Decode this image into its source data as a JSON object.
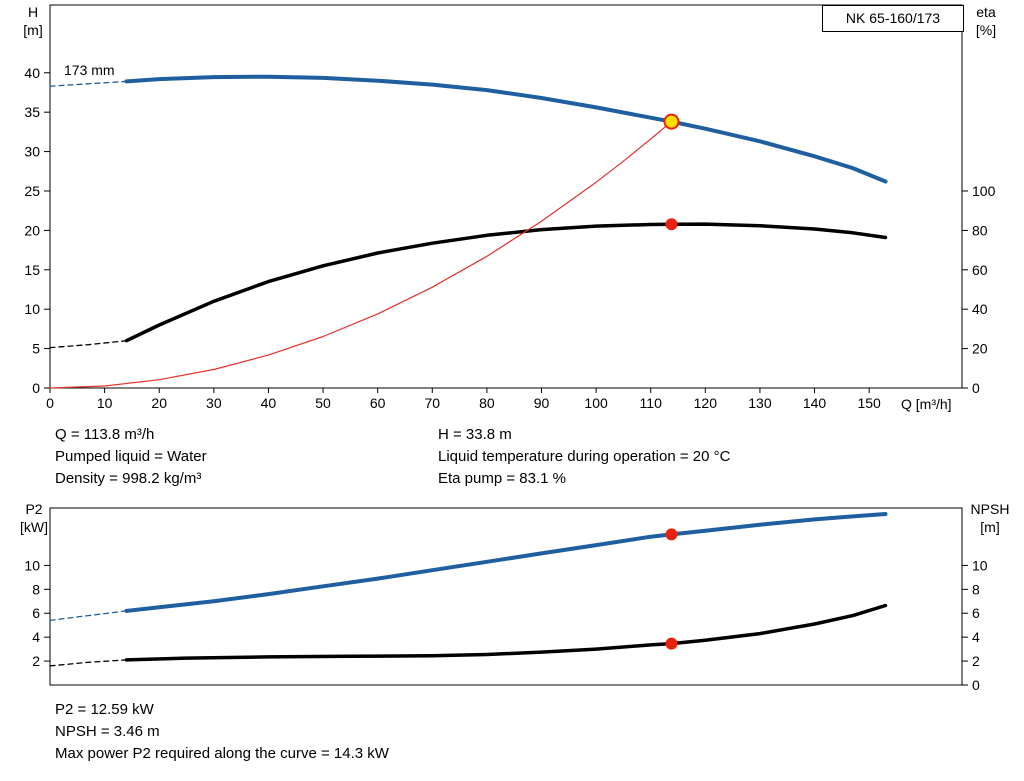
{
  "model": "NK 65-160/173",
  "impeller_label": "173 mm",
  "info_top": {
    "left": [
      "Q = 113.8 m³/h",
      "Pumped liquid = Water",
      "Density = 998.2 kg/m³"
    ],
    "right": [
      "H = 33.8 m",
      "Liquid temperature during operation = 20 °C",
      "Eta pump = 83.1 %"
    ]
  },
  "info_bottom": [
    "P2 = 12.59 kW",
    "NPSH = 3.46 m",
    "Max power P2 required along the curve = 14.3 kW"
  ],
  "colors": {
    "curve_blue": "#1f5fa0",
    "curve_black": "#000000",
    "system_red": "#e23329",
    "marker_red": "#e8210f",
    "marker_yellow": "#ffdf00"
  },
  "chart_data": [
    {
      "name": "qh-eta-chart",
      "type": "line",
      "title": "NK 65-160/173",
      "xlabel": "Q [m³/h]",
      "ylabel_left": [
        "H",
        "[m]"
      ],
      "ylabel_right": [
        "eta",
        "[%]"
      ],
      "xlim": [
        0,
        167
      ],
      "ylim_left": [
        0,
        48.6
      ],
      "ylim_right": [
        0,
        194.4
      ],
      "x_ticks": [
        0,
        10,
        20,
        30,
        40,
        50,
        60,
        70,
        80,
        90,
        100,
        110,
        120,
        130,
        140,
        150
      ],
      "y_ticks_left": [
        0,
        5,
        10,
        15,
        20,
        25,
        30,
        35,
        40
      ],
      "y_ticks_right": [
        0,
        20,
        40,
        60,
        80,
        100
      ],
      "grid": false,
      "series": [
        {
          "name": "head-curve-173mm",
          "axis": "left",
          "color": "#1f5fa0",
          "width": 4,
          "dash": [
            [
              0,
              38.3
            ],
            [
              7,
              38.6
            ],
            [
              14,
              38.9
            ]
          ],
          "points": [
            [
              14,
              38.9
            ],
            [
              20,
              39.2
            ],
            [
              30,
              39.45
            ],
            [
              40,
              39.5
            ],
            [
              50,
              39.35
            ],
            [
              60,
              39.0
            ],
            [
              70,
              38.5
            ],
            [
              80,
              37.8
            ],
            [
              90,
              36.8
            ],
            [
              100,
              35.6
            ],
            [
              110,
              34.3
            ],
            [
              113.8,
              33.8
            ],
            [
              120,
              32.9
            ],
            [
              130,
              31.3
            ],
            [
              140,
              29.4
            ],
            [
              147,
              27.9
            ],
            [
              153,
              26.2
            ]
          ]
        },
        {
          "name": "eta-curve",
          "axis": "right",
          "color": "#000000",
          "width": 3.5,
          "dash": [
            [
              0,
              20.5
            ],
            [
              7,
              22.0
            ],
            [
              14,
              24.0
            ]
          ],
          "points": [
            [
              14,
              24.0
            ],
            [
              20,
              32.0
            ],
            [
              30,
              44.0
            ],
            [
              40,
              54.0
            ],
            [
              50,
              62.0
            ],
            [
              60,
              68.5
            ],
            [
              70,
              73.5
            ],
            [
              80,
              77.5
            ],
            [
              90,
              80.4
            ],
            [
              100,
              82.2
            ],
            [
              110,
              83.0
            ],
            [
              113.8,
              83.1
            ],
            [
              120,
              83.2
            ],
            [
              130,
              82.4
            ],
            [
              140,
              80.7
            ],
            [
              147,
              78.8
            ],
            [
              153,
              76.4
            ]
          ]
        },
        {
          "name": "system-curve",
          "axis": "left",
          "color": "#e23329",
          "width": 1.2,
          "points": [
            [
              0,
              0
            ],
            [
              10,
              0.26
            ],
            [
              20,
              1.05
            ],
            [
              30,
              2.35
            ],
            [
              40,
              4.18
            ],
            [
              50,
              6.53
            ],
            [
              60,
              9.4
            ],
            [
              70,
              12.79
            ],
            [
              80,
              16.71
            ],
            [
              90,
              21.15
            ],
            [
              100,
              26.11
            ],
            [
              105,
              28.78
            ],
            [
              110,
              31.59
            ],
            [
              113.8,
              33.8
            ]
          ]
        }
      ],
      "markers": [
        {
          "name": "duty-point-qh",
          "x": 113.8,
          "value": 33.8,
          "axis": "left",
          "r": 7,
          "fill": "#ffdf00",
          "stroke": "#e8210f",
          "stroke_width": 2
        },
        {
          "name": "duty-point-eta",
          "x": 113.8,
          "value": 83.1,
          "axis": "right",
          "r": 5.5,
          "fill": "#e8210f",
          "stroke": "#e8210f",
          "stroke_width": 1
        }
      ]
    },
    {
      "name": "p2-npsh-chart",
      "type": "line",
      "title": "",
      "xlabel": "",
      "ylabel_left": [
        "P2",
        "[kW]"
      ],
      "ylabel_right": [
        "NPSH",
        "[m]"
      ],
      "xlim": [
        0,
        167
      ],
      "ylim_left": [
        0,
        14.8
      ],
      "ylim_right": [
        0,
        14.8
      ],
      "x_ticks": [],
      "y_ticks_left": [
        2,
        4,
        6,
        8,
        10
      ],
      "y_ticks_right": [
        0,
        2,
        4,
        6,
        8,
        10
      ],
      "grid": false,
      "series": [
        {
          "name": "p2-curve",
          "axis": "left",
          "color": "#1f5fa0",
          "width": 4,
          "dash": [
            [
              0,
              5.4
            ],
            [
              7,
              5.8
            ],
            [
              14,
              6.2
            ]
          ],
          "points": [
            [
              14,
              6.2
            ],
            [
              20,
              6.5
            ],
            [
              30,
              7.0
            ],
            [
              40,
              7.6
            ],
            [
              50,
              8.25
            ],
            [
              60,
              8.9
            ],
            [
              70,
              9.6
            ],
            [
              80,
              10.3
            ],
            [
              90,
              11.0
            ],
            [
              100,
              11.7
            ],
            [
              110,
              12.4
            ],
            [
              113.8,
              12.59
            ],
            [
              120,
              12.9
            ],
            [
              130,
              13.4
            ],
            [
              140,
              13.85
            ],
            [
              147,
              14.1
            ],
            [
              153,
              14.3
            ]
          ]
        },
        {
          "name": "npsh-curve",
          "axis": "right",
          "color": "#000000",
          "width": 3.5,
          "dash": [
            [
              0,
              1.6
            ],
            [
              7,
              1.9
            ],
            [
              14,
              2.1
            ]
          ],
          "points": [
            [
              14,
              2.1
            ],
            [
              25,
              2.25
            ],
            [
              40,
              2.35
            ],
            [
              55,
              2.4
            ],
            [
              70,
              2.45
            ],
            [
              80,
              2.55
            ],
            [
              90,
              2.75
            ],
            [
              100,
              3.0
            ],
            [
              110,
              3.35
            ],
            [
              113.8,
              3.46
            ],
            [
              120,
              3.75
            ],
            [
              130,
              4.3
            ],
            [
              140,
              5.1
            ],
            [
              147,
              5.8
            ],
            [
              153,
              6.65
            ]
          ]
        }
      ],
      "markers": [
        {
          "name": "duty-point-p2",
          "x": 113.8,
          "value": 12.59,
          "axis": "left",
          "r": 5.5,
          "fill": "#e8210f",
          "stroke": "#e8210f",
          "stroke_width": 1
        },
        {
          "name": "duty-point-npsh",
          "x": 113.8,
          "value": 3.46,
          "axis": "right",
          "r": 5.5,
          "fill": "#e8210f",
          "stroke": "#e8210f",
          "stroke_width": 1
        }
      ]
    }
  ]
}
